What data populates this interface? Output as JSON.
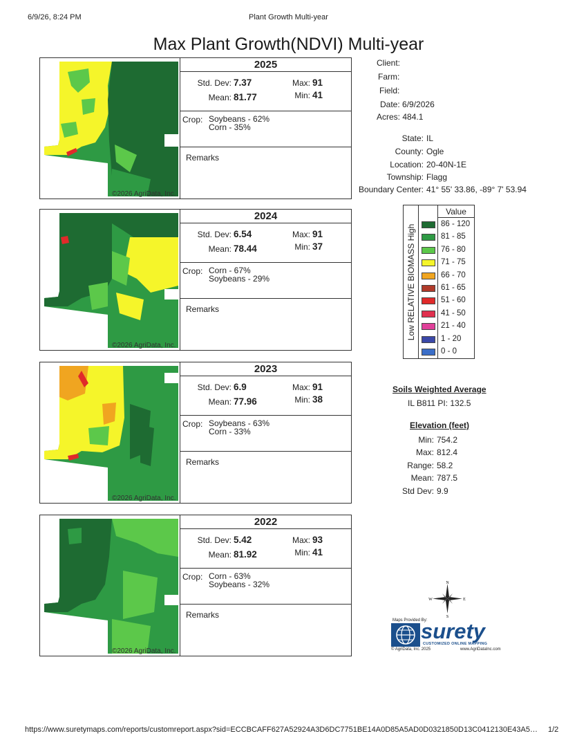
{
  "browser_header": {
    "datetime": "6/9/26, 8:24 PM",
    "title": "Plant Growth Multi-year"
  },
  "report_title": "Max Plant Growth(NDVI) Multi-year",
  "panels": [
    {
      "year": "2025",
      "std_dev_label": "Std. Dev:",
      "std_dev": "7.37",
      "mean_label": "Mean:",
      "mean": "81.77",
      "max_label": "Max:",
      "max": "91",
      "min_label": "Min:",
      "min": "41",
      "crop_label": "Crop:",
      "crops": [
        "Soybeans - 62%",
        "Corn - 35%"
      ],
      "remarks_label": "Remarks",
      "copyright": "©2026 AgriData, Inc."
    },
    {
      "year": "2024",
      "std_dev_label": "Std. Dev:",
      "std_dev": "6.54",
      "mean_label": "Mean:",
      "mean": "78.44",
      "max_label": "Max:",
      "max": "91",
      "min_label": "Min:",
      "min": "37",
      "crop_label": "Crop:",
      "crops": [
        "Corn - 67%",
        "Soybeans - 29%"
      ],
      "remarks_label": "Remarks",
      "copyright": "©2026 AgriData, Inc."
    },
    {
      "year": "2023",
      "std_dev_label": "Std. Dev:",
      "std_dev": "6.9",
      "mean_label": "Mean:",
      "mean": "77.96",
      "max_label": "Max:",
      "max": "91",
      "min_label": "Min:",
      "min": "38",
      "crop_label": "Crop:",
      "crops": [
        "Soybeans - 63%",
        "Corn - 33%"
      ],
      "remarks_label": "Remarks",
      "copyright": "©2026 AgriData, Inc."
    },
    {
      "year": "2022",
      "std_dev_label": "Std. Dev:",
      "std_dev": "5.42",
      "mean_label": "Mean:",
      "mean": "81.92",
      "max_label": "Max:",
      "max": "93",
      "min_label": "Min:",
      "min": "41",
      "crop_label": "Crop:",
      "crops": [
        "Corn - 63%",
        "Soybeans - 32%"
      ],
      "remarks_label": "Remarks",
      "copyright": "©2026 AgriData, Inc."
    }
  ],
  "client_info": {
    "client_label": "Client:",
    "farm_label": "Farm:",
    "field_label": "Field:",
    "date_label": "Date:",
    "date": "6/9/2026",
    "acres_label": "Acres:",
    "acres": "484.1",
    "state_label": "State:",
    "state": "IL",
    "county_label": "County:",
    "county": "Ogle",
    "location_label": "Location:",
    "location": "20-40N-1E",
    "township_label": "Township:",
    "township": "Flagg",
    "boundary_label": "Boundary Center:",
    "boundary": "41° 55' 33.86, -89° 7' 53.94"
  },
  "legend": {
    "header": "Value",
    "vertical_label": "Low RELATIVE BIOMASS High",
    "rows": [
      {
        "range": "86 - 120",
        "color": "#1e6b32"
      },
      {
        "range": "81 - 85",
        "color": "#2e9a44"
      },
      {
        "range": "76 - 80",
        "color": "#5cc84a"
      },
      {
        "range": "71 - 75",
        "color": "#f5f52a"
      },
      {
        "range": "66 - 70",
        "color": "#f0a520"
      },
      {
        "range": "61 - 65",
        "color": "#b03a2a"
      },
      {
        "range": "51 - 60",
        "color": "#e02a2a"
      },
      {
        "range": "41 - 50",
        "color": "#e0304f"
      },
      {
        "range": "21 - 40",
        "color": "#e0409a"
      },
      {
        "range": "1 - 20",
        "color": "#3a48a8"
      },
      {
        "range": "0 - 0",
        "color": "#3a6ec8"
      }
    ]
  },
  "soils": {
    "title": "Soils Weighted Average",
    "value": "IL B811 PI: 132.5"
  },
  "elevation": {
    "title": "Elevation (feet)",
    "min_label": "Min:",
    "min": "754.2",
    "max_label": "Max:",
    "max": "812.4",
    "range_label": "Range:",
    "range": "58.2",
    "mean_label": "Mean:",
    "mean": "787.5",
    "std_label": "Std Dev:",
    "std": "9.9"
  },
  "compass": {
    "n": "N",
    "s": "S",
    "e": "E",
    "w": "W"
  },
  "logo": {
    "maps_provided": "Maps Provided By:",
    "brand": "surety",
    "tagline": "CUSTOMIZED ONLINE MAPPING",
    "copyright": "© AgriData, Inc. 2025",
    "website": "www.AgriDataInc.com"
  },
  "footer": {
    "url": "https://www.suretymaps.com/reports/customreport.aspx?sid=ECCBCAFF627A52924A3D6DC7751BE14A0D85A5AD0D0321850D13C0412130E43A5…",
    "page": "1/2"
  },
  "colors": {
    "dark_green": "#1e6b32",
    "mid_green": "#2e9a44",
    "light_green": "#5cc84a",
    "yellow": "#f5f52a",
    "orange": "#f0a520",
    "red": "#e02a2a"
  }
}
